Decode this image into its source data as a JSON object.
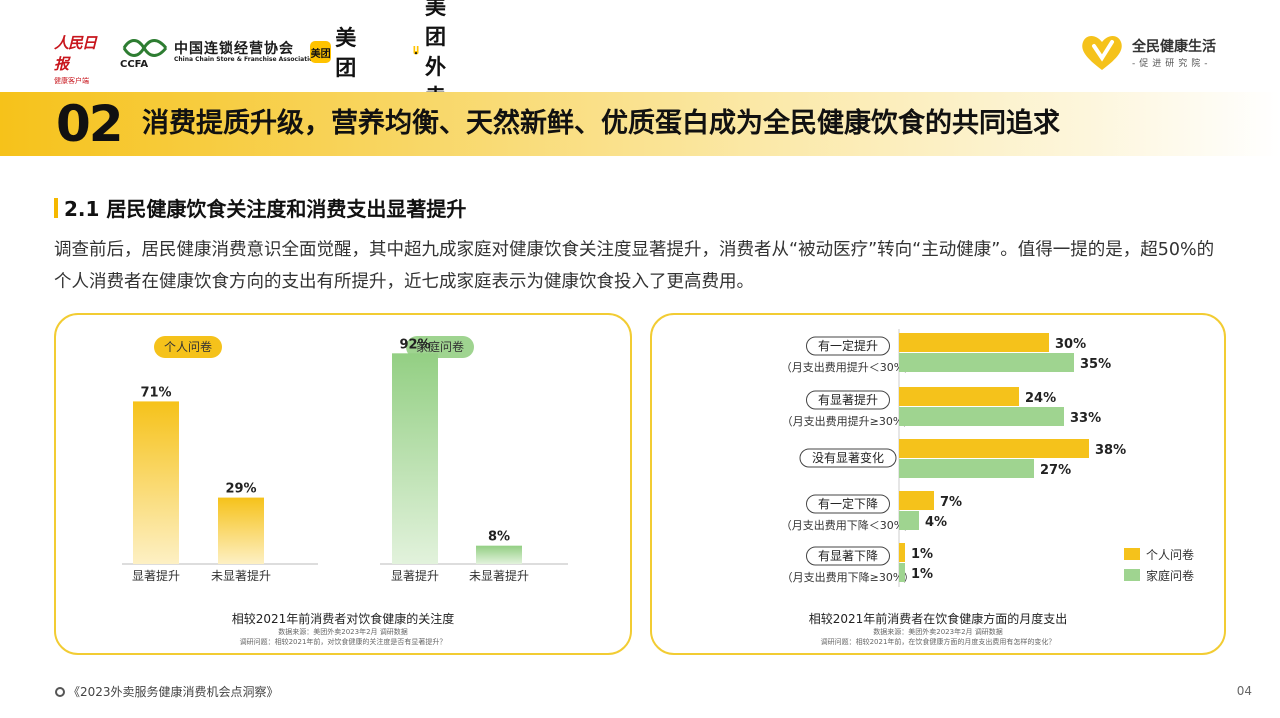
{
  "header": {
    "logo_rmrb": {
      "name": "人民日报",
      "sub": "健康客户端"
    },
    "logo_ccfa": {
      "cn": "中国连锁经营协会",
      "mark": "CCFA",
      "en": "China Chain Store & Franchise Association"
    },
    "logo_meituan": {
      "badge": "美团",
      "text": "美团"
    },
    "logo_waimai": {
      "text": "美团外卖"
    },
    "logo_right": {
      "title": "全民健康生活",
      "sub": "-促进研究院-"
    }
  },
  "band": {
    "number": "02",
    "title": "消费提质升级，营养均衡、天然新鲜、优质蛋白成为全民健康饮食的共同追求"
  },
  "section": {
    "title": "2.1 居民健康饮食关注度和消费支出显著提升",
    "paragraph": "调查前后，居民健康消费意识全面觉醒，其中超九成家庭对健康饮食关注度显著提升，消费者从“被动医疗”转向“主动健康”。值得一提的是，超50%的个人消费者在健康饮食方向的支出有所提升，近七成家庭表示为健康饮食投入了更高费用。"
  },
  "colors": {
    "accent_yellow": "#f5c21b",
    "accent_green": "#9fd490",
    "panel_border": "#f2cc33"
  },
  "chart_data": [
    {
      "type": "bar",
      "title": "相较2021年前消费者对饮食健康的关注度",
      "source": "数据来源：美团外卖2023年2月 调研数据",
      "question": "调研问题：相较2021年前，对饮食健康的关注度是否有显著提升？",
      "groups": [
        {
          "name": "个人问卷",
          "categories": [
            "显著提升",
            "未显著提升"
          ],
          "values": [
            71,
            29
          ],
          "labels": [
            "71%",
            "29%"
          ]
        },
        {
          "name": "家庭问卷",
          "categories": [
            "显著提升",
            "未显著提升"
          ],
          "values": [
            92,
            8
          ],
          "labels": [
            "92%",
            "8%"
          ]
        }
      ],
      "ylim": [
        0,
        100
      ]
    },
    {
      "type": "bar",
      "orientation": "horizontal",
      "title": "相较2021年前消费者在饮食健康方面的月度支出",
      "source": "数据来源：美团外卖2023年2月 调研数据",
      "question": "调研问题：相较2021年前，在饮食健康方面的月度支出费用有怎样的变化？",
      "categories": [
        {
          "label": "有一定提升",
          "sub": "（月支出费用提升＜30%）"
        },
        {
          "label": "有显著提升",
          "sub": "（月支出费用提升≥30%）"
        },
        {
          "label": "没有显著变化",
          "sub": ""
        },
        {
          "label": "有一定下降",
          "sub": "（月支出费用下降＜30%）"
        },
        {
          "label": "有显著下降",
          "sub": "（月支出费用下降≥30%）"
        }
      ],
      "series": [
        {
          "name": "个人问卷",
          "values": [
            30,
            24,
            38,
            7,
            1
          ],
          "labels": [
            "30%",
            "24%",
            "38%",
            "7%",
            "1%"
          ]
        },
        {
          "name": "家庭问卷",
          "values": [
            35,
            33,
            27,
            4,
            1
          ],
          "labels": [
            "35%",
            "33%",
            "27%",
            "4%",
            "1%"
          ]
        }
      ],
      "legend": "bottom-right",
      "xlim": [
        0,
        40
      ]
    }
  ],
  "footer": {
    "text": "《2023外卖服务健康消费机会点洞察》",
    "page": "04"
  }
}
